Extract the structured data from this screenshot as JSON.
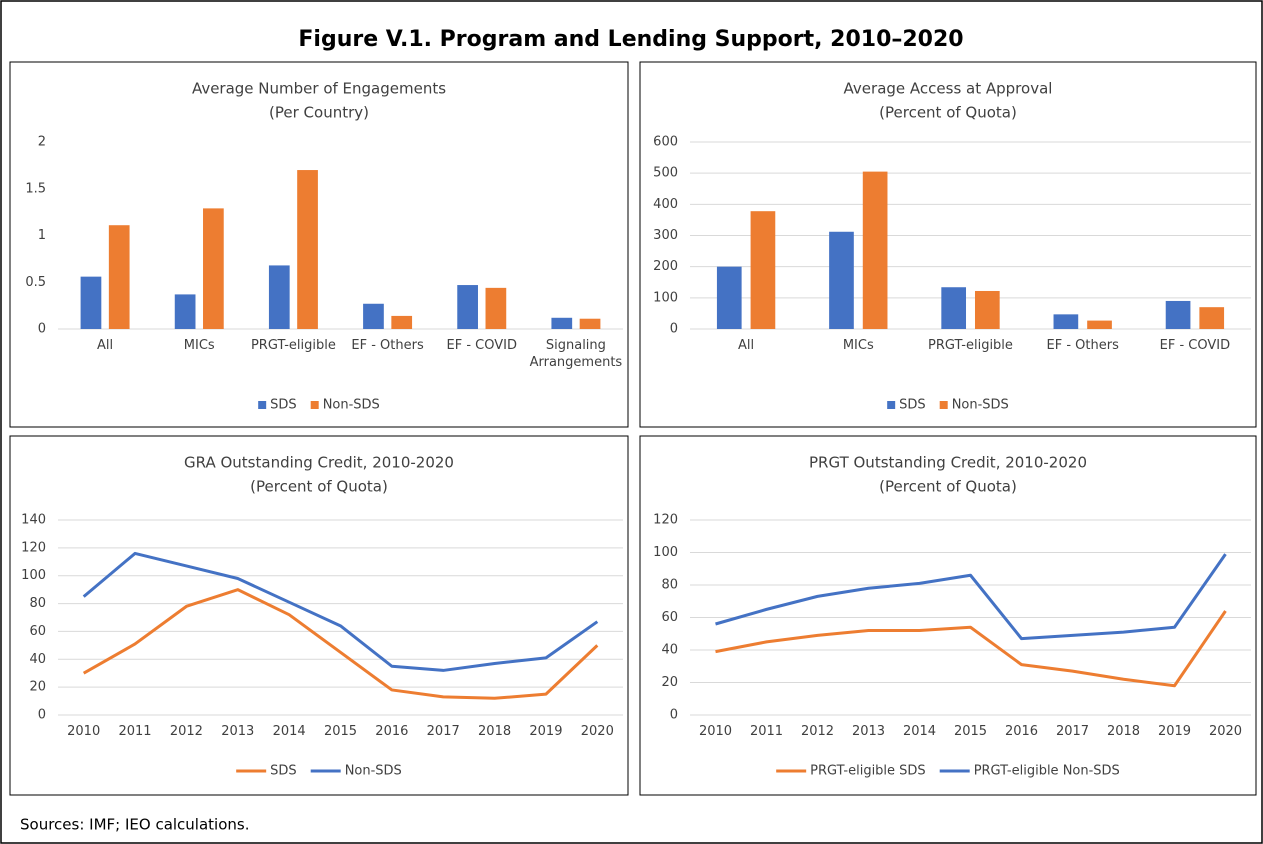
{
  "figure_title": "Figure V.1. Program and Lending Support, 2010–2020",
  "source": "Sources: IMF; IEO calculations.",
  "chart_data": [
    {
      "type": "bar",
      "title": "Average Number of Engagements",
      "subtitle": "(Per Country)",
      "categories": [
        "All",
        "MICs",
        "PRGT-eligible",
        "EF - Others",
        "EF - COVID",
        "Signaling Arrangements"
      ],
      "series": [
        {
          "name": "SDS",
          "color": "#4472c4",
          "values": [
            0.56,
            0.37,
            0.68,
            0.27,
            0.47,
            0.12
          ]
        },
        {
          "name": "Non-SDS",
          "color": "#ed7d31",
          "values": [
            1.11,
            1.29,
            1.7,
            0.14,
            0.44,
            0.11
          ]
        }
      ],
      "ylim": [
        0,
        2
      ],
      "yticks": [
        0,
        0.5,
        1,
        1.5,
        2
      ],
      "grid": false,
      "legend": "bottom"
    },
    {
      "type": "bar",
      "title": "Average Access at Approval",
      "subtitle": "(Percent of Quota)",
      "categories": [
        "All",
        "MICs",
        "PRGT-eligible",
        "EF - Others",
        "EF - COVID"
      ],
      "series": [
        {
          "name": "SDS",
          "color": "#4472c4",
          "values": [
            200,
            312,
            134,
            47,
            90
          ]
        },
        {
          "name": "Non-SDS",
          "color": "#ed7d31",
          "values": [
            378,
            505,
            122,
            27,
            70
          ]
        }
      ],
      "ylim": [
        0,
        600
      ],
      "yticks": [
        0,
        100,
        200,
        300,
        400,
        500,
        600
      ],
      "grid": true,
      "legend": "bottom"
    },
    {
      "type": "line",
      "title": "GRA Outstanding Credit, 2010-2020",
      "subtitle": "(Percent of Quota)",
      "categories": [
        "2010",
        "2011",
        "2012",
        "2013",
        "2014",
        "2015",
        "2016",
        "2017",
        "2018",
        "2019",
        "2020"
      ],
      "series": [
        {
          "name": "SDS",
          "color": "#ed7d31",
          "values": [
            30,
            51,
            78,
            90,
            72,
            45,
            18,
            13,
            12,
            15,
            50
          ]
        },
        {
          "name": "Non-SDS",
          "color": "#4472c4",
          "values": [
            85,
            116,
            107,
            98,
            81,
            64,
            35,
            32,
            37,
            41,
            67
          ]
        }
      ],
      "ylim": [
        0,
        140
      ],
      "yticks": [
        0,
        20,
        40,
        60,
        80,
        100,
        120,
        140
      ],
      "grid": true,
      "legend": "bottom"
    },
    {
      "type": "line",
      "title": "PRGT Outstanding Credit, 2010-2020",
      "subtitle": "(Percent of Quota)",
      "categories": [
        "2010",
        "2011",
        "2012",
        "2013",
        "2014",
        "2015",
        "2016",
        "2017",
        "2018",
        "2019",
        "2020"
      ],
      "series": [
        {
          "name": "PRGT-eligible SDS",
          "color": "#ed7d31",
          "values": [
            39,
            45,
            49,
            52,
            52,
            54,
            31,
            27,
            22,
            18,
            64
          ]
        },
        {
          "name": "PRGT-eligible Non-SDS",
          "color": "#4472c4",
          "values": [
            56,
            65,
            73,
            78,
            81,
            86,
            47,
            49,
            51,
            54,
            99
          ]
        }
      ],
      "ylim": [
        0,
        120
      ],
      "yticks": [
        0,
        20,
        40,
        60,
        80,
        100,
        120
      ],
      "grid": true,
      "legend": "bottom"
    }
  ]
}
